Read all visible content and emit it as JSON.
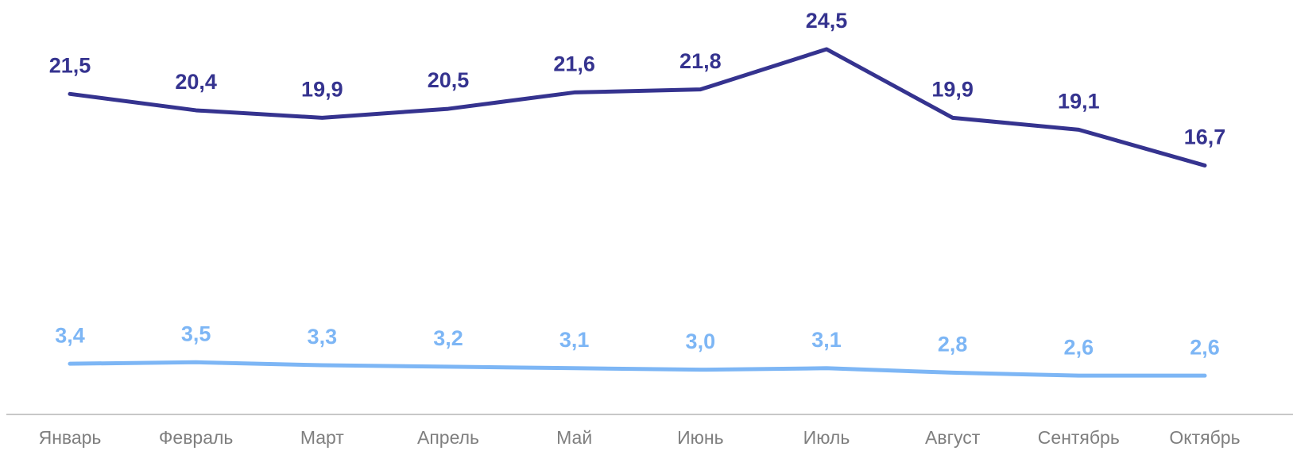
{
  "chart_data": {
    "type": "line",
    "categories": [
      "Январь",
      "Февраль",
      "Март",
      "Апрель",
      "Май",
      "Июнь",
      "Июль",
      "Август",
      "Сентябрь",
      "Октябрь"
    ],
    "series": [
      {
        "color": "#35338f",
        "values": [
          21.5,
          20.4,
          19.9,
          20.5,
          21.6,
          21.8,
          24.5,
          19.9,
          19.1,
          16.7
        ],
        "value_labels": [
          "21,5",
          "20,4",
          "19,9",
          "20,5",
          "21,6",
          "21,8",
          "24,5",
          "19,9",
          "19,1",
          "16,7"
        ]
      },
      {
        "color": "#7db6f5",
        "values": [
          3.4,
          3.5,
          3.3,
          3.2,
          3.1,
          3.0,
          3.1,
          2.8,
          2.6,
          2.6
        ],
        "value_labels": [
          "3,4",
          "3,5",
          "3,3",
          "3,2",
          "3,1",
          "3,0",
          "3,1",
          "2,8",
          "2,6",
          "2,6"
        ]
      }
    ],
    "ylim": [
      0,
      27.8
    ]
  }
}
